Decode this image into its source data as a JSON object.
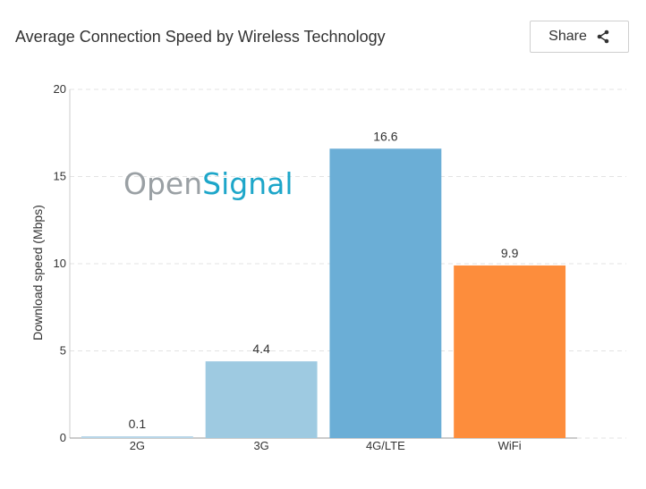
{
  "header": {
    "title": "Average Connection Speed by Wireless Technology",
    "share_label": "Share"
  },
  "watermark": {
    "part1": "Open",
    "part2": "Signal"
  },
  "chart_data": {
    "type": "bar",
    "title": "Average Connection Speed by Wireless Technology",
    "xlabel": "",
    "ylabel": "Download speed (Mbps)",
    "categories": [
      "2G",
      "3G",
      "4G/LTE",
      "WiFi"
    ],
    "values": [
      0.1,
      4.4,
      16.6,
      9.9
    ],
    "data_labels": [
      "0.1",
      "4.4",
      "16.6",
      "9.9"
    ],
    "bar_colors": [
      "#b8d6e8",
      "#9ecae1",
      "#6baed6",
      "#fd8d3c"
    ],
    "ylim": [
      0,
      20
    ],
    "yticks": [
      0,
      5,
      10,
      15,
      20
    ],
    "ytick_labels": [
      "0",
      "5",
      "10",
      "15",
      "20"
    ],
    "grid": true,
    "grid_style": "dashed",
    "legend": "none"
  }
}
